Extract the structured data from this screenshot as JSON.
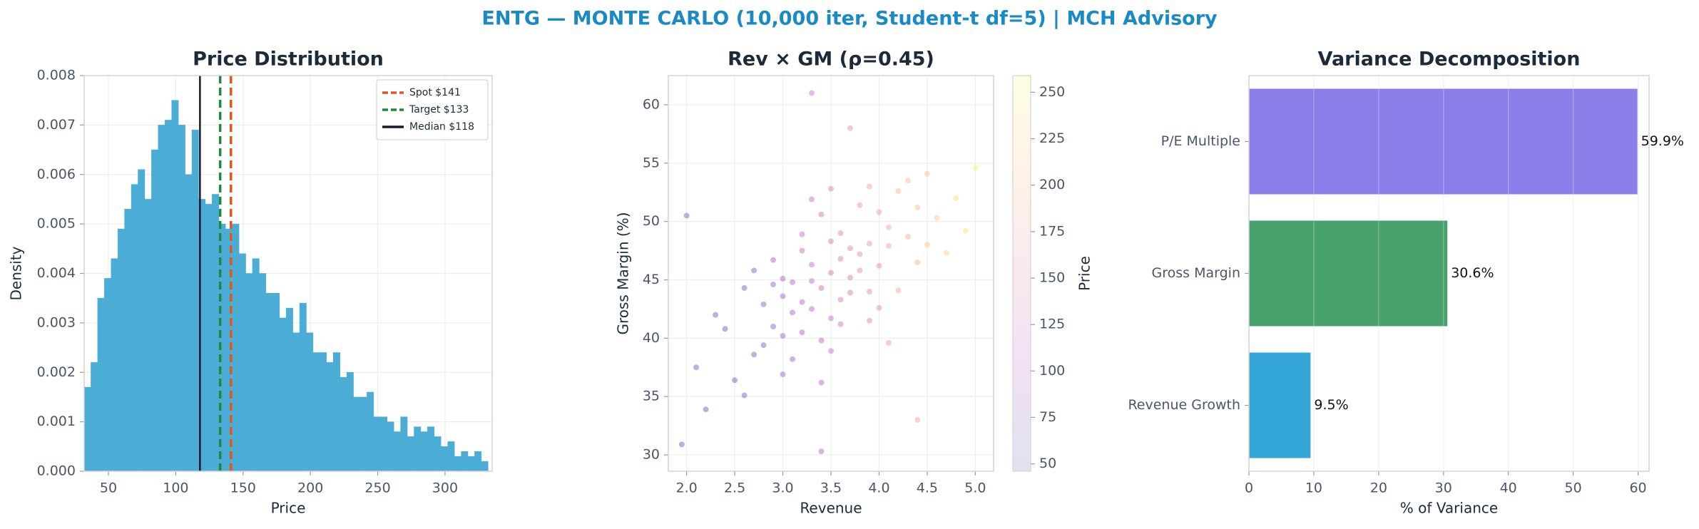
{
  "title": "ENTG — MONTE CARLO (10,000 iter, Student-t df=5) | MCH Advisory",
  "chart_data": [
    {
      "type": "histogram",
      "title": "Price Distribution",
      "xlabel": "Price",
      "ylabel": "Density",
      "bins": [
        32,
        37,
        42,
        47,
        52,
        57,
        62,
        67,
        72,
        77,
        82,
        87,
        92,
        97,
        102,
        107,
        112,
        117,
        122,
        127,
        132,
        137,
        142,
        147,
        152,
        157,
        162,
        167,
        172,
        177,
        182,
        187,
        192,
        197,
        202,
        207,
        212,
        217,
        222,
        227,
        232,
        237,
        242,
        247,
        252,
        257,
        262,
        267,
        272,
        277,
        282,
        287,
        292,
        297,
        302,
        307,
        312,
        317,
        322,
        327,
        332
      ],
      "values": [
        0.0017,
        0.0022,
        0.0035,
        0.0039,
        0.0043,
        0.0049,
        0.0053,
        0.0058,
        0.0061,
        0.0055,
        0.0065,
        0.007,
        0.0071,
        0.0075,
        0.007,
        0.006,
        0.0069,
        0.0055,
        0.0054,
        0.0056,
        0.005,
        0.0049,
        0.005,
        0.0044,
        0.004,
        0.0043,
        0.004,
        0.0036,
        0.0036,
        0.0031,
        0.0033,
        0.0028,
        0.0034,
        0.0028,
        0.0024,
        0.0024,
        0.0022,
        0.0024,
        0.0019,
        0.002,
        0.0015,
        0.0015,
        0.0016,
        0.0011,
        0.0011,
        0.001,
        0.0008,
        0.0011,
        0.0007,
        0.0009,
        0.0008,
        0.0009,
        0.0007,
        0.0005,
        0.0006,
        0.0003,
        0.0004,
        0.0003,
        0.0004,
        0.0002
      ],
      "color": "#4badd6",
      "xlim": [
        32,
        335
      ],
      "ylim": [
        0,
        0.008
      ],
      "xticks": [
        50,
        100,
        150,
        200,
        250,
        300
      ],
      "yticks": [
        {
          "value": 0,
          "label": "0.000"
        },
        {
          "value": 0.001,
          "label": "0.001"
        },
        {
          "value": 0.002,
          "label": "0.002"
        },
        {
          "value": 0.003,
          "label": "0.003"
        },
        {
          "value": 0.004,
          "label": "0.004"
        },
        {
          "value": 0.005,
          "label": "0.005"
        },
        {
          "value": 0.006,
          "label": "0.006"
        },
        {
          "value": 0.007,
          "label": "0.007"
        },
        {
          "value": 0.008,
          "label": "0.008"
        }
      ],
      "grid": true,
      "vlines": [
        {
          "name": "Spot $141",
          "value": 141,
          "color": "#e0561b",
          "style": "dashed"
        },
        {
          "name": "Target $133",
          "value": 133,
          "color": "#1e8a3c",
          "style": "dashed"
        },
        {
          "name": "Median $118",
          "value": 118,
          "color": "#1a1a2a",
          "style": "solid"
        }
      ],
      "legend": "upper right"
    },
    {
      "type": "scatter",
      "title": "Rev × GM (ρ=0.45)",
      "xlabel": "Revenue",
      "ylabel": "Gross Margin (%)",
      "x": [
        3.2,
        3.5,
        3.8,
        2.9,
        3.4,
        4.1,
        3.0,
        3.6,
        3.3,
        4.4,
        2.7,
        3.9,
        3.1,
        3.7,
        4.2,
        2.5,
        3.5,
        4.0,
        3.2,
        2.8,
        4.6,
        3.4,
        3.6,
        3.0,
        3.9,
        2.4,
        4.3,
        3.3,
        3.8,
        3.1,
        4.8,
        2.6,
        3.5,
        4.0,
        3.7,
        2.9,
        4.5,
        3.2,
        3.6,
        4.1,
        2.3,
        3.4,
        3.0,
        3.9,
        4.4,
        3.3,
        2.8,
        3.7,
        4.2,
        3.1,
        2.1,
        4.9,
        3.5,
        3.8,
        2.6,
        4.0,
        3.2,
        3.6,
        4.7,
        2.9,
        3.4,
        4.3,
        3.0,
        3.9,
        2.2,
        4.5,
        3.3,
        2.7,
        4.1,
        3.5,
        5.0,
        1.95,
        3.4,
        2.0,
        4.4,
        3.7,
        3.3
      ],
      "y": [
        43.1,
        45.6,
        47.2,
        41.0,
        44.3,
        49.5,
        40.2,
        46.8,
        42.5,
        51.2,
        38.6,
        48.1,
        44.8,
        43.9,
        52.6,
        36.4,
        41.7,
        46.2,
        47.5,
        42.9,
        50.3,
        39.8,
        49.0,
        45.1,
        44.0,
        40.8,
        48.7,
        46.3,
        51.4,
        38.2,
        52.0,
        35.1,
        48.3,
        42.6,
        45.2,
        44.6,
        54.1,
        40.5,
        43.3,
        47.9,
        42.0,
        50.6,
        36.9,
        53.0,
        46.5,
        44.9,
        39.4,
        47.7,
        44.1,
        42.2,
        37.5,
        49.2,
        38.9,
        45.8,
        44.3,
        50.8,
        48.9,
        41.2,
        47.3,
        46.7,
        36.2,
        53.5,
        43.6,
        41.5,
        33.9,
        48.0,
        51.9,
        45.8,
        39.6,
        52.8,
        54.6,
        30.9,
        30.3,
        50.5,
        33.0,
        58.0,
        61.0
      ],
      "c": [
        104,
        131,
        154,
        72,
        121,
        181,
        82,
        143,
        108,
        204,
        52,
        166,
        103,
        133,
        195,
        48,
        122,
        158,
        115,
        70,
        215,
        110,
        150,
        92,
        150,
        46,
        190,
        115,
        165,
        88,
        232,
        50,
        135,
        160,
        140,
        80,
        210,
        100,
        132,
        175,
        47,
        128,
        80,
        175,
        198,
        112,
        62,
        146,
        180,
        95,
        46,
        238,
        118,
        152,
        55,
        170,
        118,
        128,
        222,
        85,
        108,
        200,
        90,
        148,
        46,
        212,
        120,
        62,
        165,
        140,
        250,
        46,
        104,
        48,
        178,
        160,
        125
      ],
      "colormap": "plasma",
      "alpha": 0.3,
      "xlim": [
        1.81,
        5.19
      ],
      "ylim": [
        28.6,
        62.5
      ],
      "xticks": [
        {
          "value": 2,
          "label": "2.0"
        },
        2.5,
        {
          "value": 3,
          "label": "3.0"
        },
        3.5,
        {
          "value": 4,
          "label": "4.0"
        },
        4.5,
        {
          "value": 5,
          "label": "5.0"
        }
      ],
      "yticks": [
        30,
        35,
        40,
        45,
        50,
        55,
        60
      ],
      "grid": true,
      "colorbar": {
        "label": "Price",
        "lim": [
          46,
          259
        ],
        "ticks": [
          50,
          75,
          100,
          125,
          150,
          175,
          200,
          225,
          250
        ]
      }
    },
    {
      "type": "barh",
      "title": "Variance Decomposition",
      "xlabel": "% of Variance",
      "categories": [
        "Revenue Growth",
        "Gross Margin",
        "P/E Multiple"
      ],
      "values": [
        9.5,
        30.6,
        59.9
      ],
      "value_labels": [
        "9.5%",
        "30.6%",
        "59.9%"
      ],
      "colors": [
        "#34a6d8",
        "#48a06d",
        "#8a7fe8"
      ],
      "xlim": [
        0,
        61.7
      ],
      "xticks": [
        0,
        10,
        20,
        30,
        40,
        50,
        60
      ],
      "grid": true
    }
  ]
}
